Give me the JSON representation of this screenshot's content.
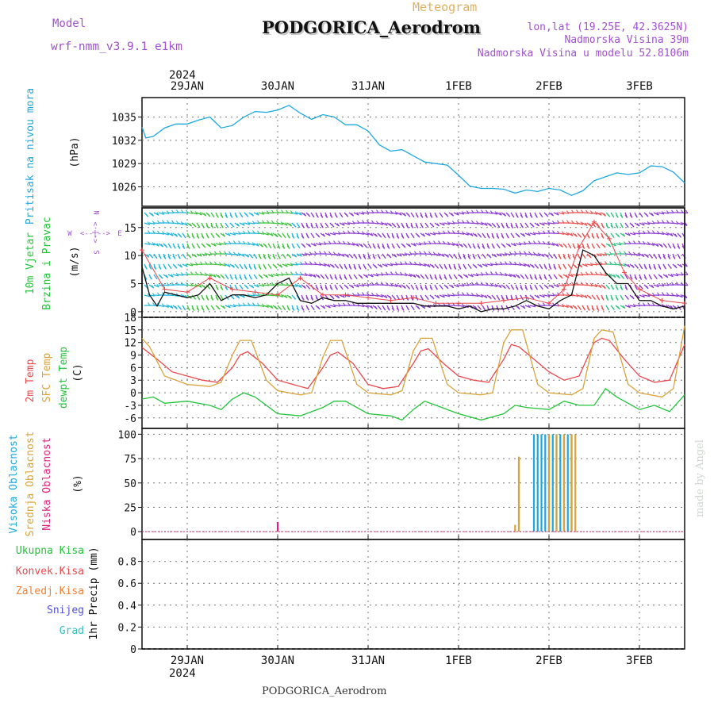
{
  "header": {
    "model_label": "Model",
    "model_name": "wrf-nmm_v3.9.1 e1km",
    "meteogram_label": "Meteogram",
    "station": "PODGORICA_Aerodrom",
    "lonlat": "lon,lat (19.25E, 42.3625N)",
    "altitude": "Nadmorska Visina 39m",
    "model_altitude": "Nadmorska Visina u modelu 52.8106m",
    "footer_station": "PODGORICA_Aerodrom",
    "credit": "made by Angel"
  },
  "colors": {
    "pressure": "#1ea8e0",
    "temp2m": "#e8484c",
    "sfc": "#d9a33a",
    "dewpt": "#22c43a",
    "high_cloud": "#1ea8e0",
    "mid_cloud": "#d9a33a",
    "low_cloud": "#e0207a",
    "total_precip": "#22c43a",
    "conv_precip": "#e8484c",
    "frozen_precip": "#f07f33",
    "snow": "#5050e0",
    "graupel": "#30c0c0",
    "title_purple": "#a050d0",
    "meteogram_orange": "#e0b060"
  },
  "chart_data": [
    {
      "type": "line",
      "name": "pressure",
      "labels": [
        "Pritisak na nivou mora",
        "(hPa)"
      ],
      "time_axis": {
        "start": "2024-01-28T12",
        "end": "2024-02-03T12",
        "ticks": [
          "29JAN",
          "30JAN",
          "31JAN",
          "1FEB",
          "2FEB",
          "3FEB"
        ],
        "year": "2024"
      },
      "yticks": [
        "1026",
        "1029",
        "1032",
        "1035"
      ],
      "ylim": [
        1023.5,
        1037.5
      ],
      "series": [
        {
          "x": [
            "2024-01-28T12",
            "2024-01-28T13",
            "2024-01-28T15",
            "2024-01-28T18",
            "2024-01-28T21",
            "2024-01-29T00",
            "2024-01-29T03",
            "2024-01-29T06",
            "2024-01-29T09",
            "2024-01-29T12",
            "2024-01-29T15",
            "2024-01-29T18",
            "2024-01-29T21",
            "2024-01-30T00",
            "2024-01-30T03",
            "2024-01-30T06",
            "2024-01-30T09",
            "2024-01-30T12",
            "2024-01-30T15",
            "2024-01-30T18",
            "2024-01-30T21",
            "2024-01-31T00",
            "2024-01-31T03",
            "2024-01-31T06",
            "2024-01-31T09",
            "2024-01-31T12",
            "2024-01-31T15",
            "2024-01-31T18",
            "2024-01-31T21",
            "2024-02-01T00",
            "2024-02-01T03",
            "2024-02-01T06",
            "2024-02-01T09",
            "2024-02-01T12",
            "2024-02-01T15",
            "2024-02-01T18",
            "2024-02-01T21",
            "2024-02-02T00",
            "2024-02-02T03",
            "2024-02-02T06",
            "2024-02-02T09",
            "2024-02-02T12",
            "2024-02-02T15",
            "2024-02-02T18",
            "2024-02-02T21",
            "2024-02-03T00",
            "2024-02-03T03",
            "2024-02-03T06",
            "2024-02-03T09",
            "2024-02-03T12"
          ],
          "y": [
            1033.7,
            1032.3,
            1032.5,
            1033.6,
            1034.1,
            1034.1,
            1034.6,
            1035.0,
            1033.6,
            1033.9,
            1035.0,
            1035.7,
            1035.6,
            1035.9,
            1036.5,
            1035.5,
            1034.7,
            1035.3,
            1035.0,
            1034.0,
            1034.0,
            1033.2,
            1031.4,
            1030.6,
            1030.8,
            1030.0,
            1029.2,
            1029.0,
            1028.8,
            1027.5,
            1026.1,
            1025.8,
            1025.8,
            1025.7,
            1025.2,
            1025.6,
            1025.4,
            1025.8,
            1025.6,
            1024.9,
            1025.5,
            1026.8,
            1027.3,
            1027.8,
            1027.6,
            1027.8,
            1028.7,
            1028.6,
            1027.9,
            1026.5
          ]
        }
      ]
    },
    {
      "type": "line",
      "name": "wind",
      "labels": [
        "10m Vjetar",
        "Brzina i Pravac",
        "(m/s)"
      ],
      "compass": {
        "n": "N",
        "s": "S",
        "e": "E",
        "w": "W"
      },
      "yticks": [
        "0",
        "5",
        "10",
        "15"
      ],
      "ylim": [
        -1,
        18.5
      ],
      "series": [
        {
          "name": "speed",
          "x": [
            "2024-01-28T12",
            "2024-01-28T14",
            "2024-01-28T16",
            "2024-01-28T18",
            "2024-01-28T21",
            "2024-01-29T00",
            "2024-01-29T03",
            "2024-01-29T06",
            "2024-01-29T09",
            "2024-01-29T12",
            "2024-01-29T15",
            "2024-01-29T18",
            "2024-01-29T21",
            "2024-01-30T00",
            "2024-01-30T03",
            "2024-01-30T06",
            "2024-01-30T09",
            "2024-01-30T12",
            "2024-01-30T15",
            "2024-01-30T18",
            "2024-01-30T21",
            "2024-01-31T00",
            "2024-01-31T03",
            "2024-01-31T06",
            "2024-01-31T09",
            "2024-01-31T12",
            "2024-01-31T15",
            "2024-01-31T18",
            "2024-01-31T21",
            "2024-02-01T00",
            "2024-02-01T03",
            "2024-02-01T06",
            "2024-02-01T09",
            "2024-02-01T12",
            "2024-02-01T15",
            "2024-02-01T18",
            "2024-02-01T21",
            "2024-02-02T00",
            "2024-02-02T03",
            "2024-02-02T06",
            "2024-02-02T09",
            "2024-02-02T12",
            "2024-02-02T15",
            "2024-02-02T18",
            "2024-02-02T21",
            "2024-02-03T00",
            "2024-02-03T03",
            "2024-02-03T06",
            "2024-02-03T09",
            "2024-02-03T12"
          ],
          "y": [
            8,
            3,
            1,
            3.5,
            3,
            2.5,
            3,
            5,
            2,
            3,
            3,
            2.5,
            3,
            5,
            6,
            2,
            1.5,
            2.5,
            2,
            2,
            1.5,
            1.5,
            1.5,
            1.5,
            1.5,
            1.5,
            1,
            1,
            1,
            0.5,
            1,
            0,
            0.5,
            0.5,
            1,
            2,
            1,
            0.5,
            2,
            3,
            11,
            10,
            7,
            5,
            5,
            2,
            2,
            1,
            0.5,
            1
          ]
        },
        {
          "name": "gust",
          "x": [
            "2024-01-28T12",
            "2024-01-28T18",
            "2024-01-29T00",
            "2024-01-29T06",
            "2024-01-29T12",
            "2024-01-29T18",
            "2024-01-30T00",
            "2024-01-30T06",
            "2024-01-30T12",
            "2024-01-30T18",
            "2024-01-31T00",
            "2024-01-31T06",
            "2024-01-31T12",
            "2024-01-31T18",
            "2024-02-01T00",
            "2024-02-01T06",
            "2024-02-01T12",
            "2024-02-01T18",
            "2024-02-02T00",
            "2024-02-02T04",
            "2024-02-02T08",
            "2024-02-02T12",
            "2024-02-02T16",
            "2024-02-02T20",
            "2024-02-03T00",
            "2024-02-03T06",
            "2024-02-03T12"
          ],
          "y": [
            11,
            4,
            3.5,
            6,
            4,
            3.5,
            3,
            6,
            3,
            3,
            2.5,
            2,
            2.5,
            1.5,
            1.5,
            1.5,
            2,
            2.5,
            1.5,
            4,
            11.5,
            16,
            13,
            7,
            4,
            2,
            1.5
          ]
        }
      ],
      "barb_colors": [
        {
          "from": "2024-01-28T12",
          "to": "2024-01-29T00",
          "color": "#20b4d8"
        },
        {
          "from": "2024-01-29T00",
          "to": "2024-01-29T09",
          "color": "#40c040"
        },
        {
          "from": "2024-01-29T09",
          "to": "2024-01-29T18",
          "color": "#20b4d8"
        },
        {
          "from": "2024-01-29T18",
          "to": "2024-01-30T03",
          "color": "#40c040"
        },
        {
          "from": "2024-01-30T03",
          "to": "2024-01-30T06",
          "color": "#20b4d8"
        },
        {
          "from": "2024-01-30T06",
          "to": "2024-02-02T02",
          "color": "#8a3cd0"
        },
        {
          "from": "2024-02-02T02",
          "to": "2024-02-02T14",
          "color": "#e85050"
        },
        {
          "from": "2024-02-02T14",
          "to": "2024-02-02T20",
          "color": "#30c080"
        },
        {
          "from": "2024-02-02T20",
          "to": "2024-02-03T12",
          "color": "#8a3cd0"
        }
      ]
    },
    {
      "type": "line",
      "name": "temperature",
      "labels": [
        "2m Temp",
        "SFC Temp",
        "dewpt Temp",
        "(C)"
      ],
      "yticks": [
        "-6",
        "-3",
        "0",
        "3",
        "6",
        "9",
        "12",
        "15",
        "18"
      ],
      "ylim": [
        -8.5,
        18
      ],
      "series": [
        {
          "name": "2m Temp",
          "x": [
            "2024-01-28T12",
            "2024-01-28T16",
            "2024-01-28T20",
            "2024-01-29T00",
            "2024-01-29T04",
            "2024-01-29T08",
            "2024-01-29T12",
            "2024-01-29T14",
            "2024-01-29T16",
            "2024-01-29T20",
            "2024-01-30T00",
            "2024-01-30T04",
            "2024-01-30T08",
            "2024-01-30T12",
            "2024-01-30T14",
            "2024-01-30T16",
            "2024-01-30T20",
            "2024-01-31T00",
            "2024-01-31T04",
            "2024-01-31T08",
            "2024-01-31T12",
            "2024-01-31T14",
            "2024-01-31T16",
            "2024-01-31T20",
            "2024-02-01T00",
            "2024-02-01T04",
            "2024-02-01T08",
            "2024-02-01T12",
            "2024-02-01T14",
            "2024-02-01T16",
            "2024-02-01T20",
            "2024-02-02T00",
            "2024-02-02T04",
            "2024-02-02T08",
            "2024-02-02T12",
            "2024-02-02T14",
            "2024-02-02T16",
            "2024-02-02T20",
            "2024-02-03T00",
            "2024-02-03T04",
            "2024-02-03T08",
            "2024-02-03T12"
          ],
          "y": [
            10.8,
            8,
            5,
            4,
            3,
            2.5,
            6,
            9,
            9.8,
            7,
            3,
            2,
            1,
            6,
            9,
            9.7,
            7,
            2,
            1,
            1.5,
            7,
            10,
            10.5,
            7,
            4,
            3,
            2.5,
            8,
            11.5,
            11,
            8,
            5,
            3,
            4,
            12,
            13,
            12.5,
            8,
            4,
            2.5,
            3,
            11.5
          ]
        },
        {
          "name": "SFC Temp",
          "x": [
            "2024-01-28T12",
            "2024-01-28T14",
            "2024-01-28T18",
            "2024-01-29T00",
            "2024-01-29T06",
            "2024-01-29T09",
            "2024-01-29T12",
            "2024-01-29T14",
            "2024-01-29T17",
            "2024-01-29T21",
            "2024-01-30T00",
            "2024-01-30T06",
            "2024-01-30T09",
            "2024-01-30T12",
            "2024-01-30T14",
            "2024-01-30T17",
            "2024-01-30T21",
            "2024-01-31T00",
            "2024-01-31T06",
            "2024-01-31T09",
            "2024-01-31T12",
            "2024-01-31T14",
            "2024-01-31T17",
            "2024-01-31T21",
            "2024-02-01T00",
            "2024-02-01T06",
            "2024-02-01T09",
            "2024-02-01T12",
            "2024-02-01T14",
            "2024-02-01T17",
            "2024-02-01T21",
            "2024-02-02T00",
            "2024-02-02T06",
            "2024-02-02T09",
            "2024-02-02T12",
            "2024-02-02T14",
            "2024-02-02T17",
            "2024-02-02T21",
            "2024-02-03T00",
            "2024-02-03T06",
            "2024-02-03T09",
            "2024-02-03T12"
          ],
          "y": [
            13,
            11,
            4,
            2,
            1.5,
            2.5,
            9,
            12.5,
            12.5,
            3,
            0.5,
            -0.5,
            0,
            8.5,
            12.5,
            12.5,
            2,
            0,
            -0.5,
            0.5,
            10,
            13,
            13,
            2,
            0,
            -0.5,
            0,
            12,
            15,
            15,
            2,
            0,
            -0.5,
            1,
            13,
            15,
            14.5,
            2,
            0,
            -1,
            1,
            16
          ]
        },
        {
          "name": "dewpt Temp",
          "x": [
            "2024-01-28T12",
            "2024-01-28T15",
            "2024-01-28T18",
            "2024-01-29T00",
            "2024-01-29T06",
            "2024-01-29T09",
            "2024-01-29T12",
            "2024-01-29T15",
            "2024-01-29T18",
            "2024-01-30T00",
            "2024-01-30T06",
            "2024-01-30T12",
            "2024-01-30T15",
            "2024-01-30T18",
            "2024-01-31T00",
            "2024-01-31T06",
            "2024-01-31T09",
            "2024-01-31T12",
            "2024-01-31T15",
            "2024-01-31T18",
            "2024-02-01T00",
            "2024-02-01T06",
            "2024-02-01T12",
            "2024-02-01T15",
            "2024-02-01T18",
            "2024-02-02T00",
            "2024-02-02T04",
            "2024-02-02T08",
            "2024-02-02T12",
            "2024-02-02T15",
            "2024-02-02T18",
            "2024-02-03T00",
            "2024-02-03T04",
            "2024-02-03T08",
            "2024-02-03T12"
          ],
          "y": [
            -1.5,
            -1,
            -2.5,
            -2,
            -3,
            -4,
            -1.5,
            0,
            -1,
            -5,
            -5.5,
            -3.5,
            -2,
            -2,
            -5,
            -5.5,
            -6.5,
            -4,
            -2,
            -3,
            -5,
            -6.5,
            -5,
            -3,
            -3.5,
            -4,
            -2,
            -3,
            -3,
            1,
            -1,
            -4,
            -3,
            -4.5,
            -0.5
          ]
        }
      ]
    },
    {
      "type": "bar",
      "name": "cloud cover",
      "labels": [
        "Visoka Oblacnost",
        "Srednja Oblacnost",
        "Niska Oblacnost",
        "(%)"
      ],
      "yticks": [
        "0",
        "25",
        "50",
        "75",
        "100"
      ],
      "ylim": [
        -8,
        106
      ],
      "series": [
        {
          "name": "Visoka Oblacnost",
          "x": [
            "2024-02-01T20",
            "2024-02-01T21",
            "2024-02-01T22",
            "2024-02-01T23",
            "2024-02-02T00",
            "2024-02-02T01",
            "2024-02-02T02",
            "2024-02-02T03",
            "2024-02-02T04",
            "2024-02-02T05",
            "2024-02-02T06"
          ],
          "y": [
            100,
            100,
            100,
            100,
            100,
            100,
            100,
            100,
            100,
            100,
            100
          ]
        },
        {
          "name": "Srednja Oblacnost",
          "x": [
            "2024-02-01T15",
            "2024-02-01T16",
            "2024-02-02T00",
            "2024-02-02T02",
            "2024-02-02T04",
            "2024-02-02T06",
            "2024-02-02T07"
          ],
          "y": [
            7,
            77,
            100,
            100,
            100,
            100,
            100
          ]
        },
        {
          "name": "Niska Oblacnost",
          "x": [
            "2024-01-30T00"
          ],
          "y": [
            10
          ]
        }
      ]
    },
    {
      "type": "bar",
      "name": "precipitation",
      "labels": [
        "Ukupna Kisa",
        "Konvek.Kisa",
        "Zaledj.Kisa",
        "Snijeg",
        "Grad",
        "1hr Precip (mm)"
      ],
      "yticks": [
        "0",
        "0.2",
        "0.4",
        "0.6",
        "0.8"
      ],
      "ylim": [
        0,
        1.0
      ],
      "series": []
    }
  ]
}
